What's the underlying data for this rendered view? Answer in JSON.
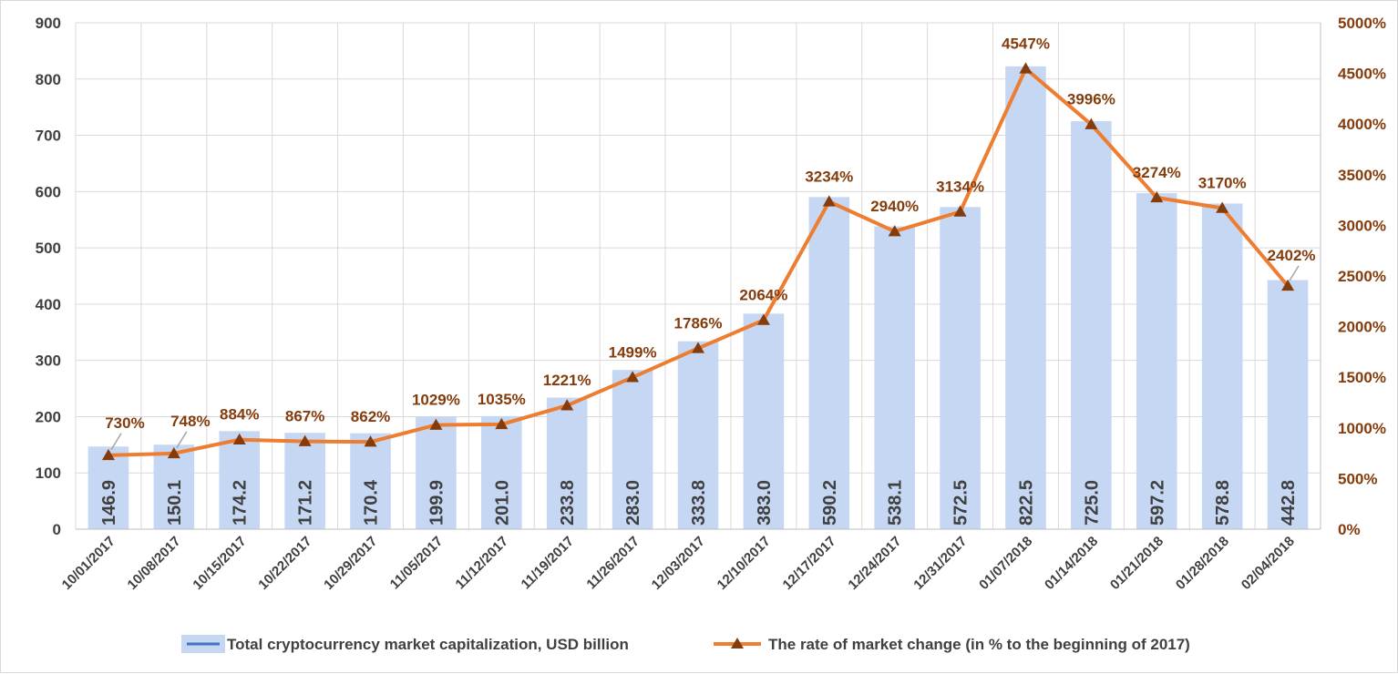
{
  "chart_data": {
    "type": "bar+line",
    "categories": [
      "10/01/2017",
      "10/08/2017",
      "10/15/2017",
      "10/22/2017",
      "10/29/2017",
      "11/05/2017",
      "11/12/2017",
      "11/19/2017",
      "11/26/2017",
      "12/03/2017",
      "12/10/2017",
      "12/17/2017",
      "12/24/2017",
      "12/31/2017",
      "01/07/2018",
      "01/14/2018",
      "01/21/2018",
      "01/28/2018",
      "02/04/2018"
    ],
    "series": [
      {
        "name": "Total cryptocurrency market capitalization, USD billion",
        "type": "bar",
        "axis": "left",
        "color": "#c5d7f3",
        "values": [
          146.9,
          150.1,
          174.2,
          171.2,
          170.4,
          199.9,
          201.0,
          233.8,
          283.0,
          333.8,
          383.0,
          590.2,
          538.1,
          572.5,
          822.5,
          725.0,
          597.2,
          578.8,
          442.8
        ],
        "labels": [
          "146.9",
          "150.1",
          "174.2",
          "171.2",
          "170.4",
          "199.9",
          "201.0",
          "233.8",
          "283.0",
          "333.8",
          "383.0",
          "590.2",
          "538.1",
          "572.5",
          "822.5",
          "725.0",
          "597.2",
          "578.8",
          "442.8"
        ]
      },
      {
        "name": "The rate of market change (in % to the beginning of 2017)",
        "type": "line",
        "axis": "right",
        "color": "#ed7d31",
        "marker_color": "#843c0c",
        "values": [
          730,
          748,
          884,
          867,
          862,
          1029,
          1035,
          1221,
          1499,
          1786,
          2064,
          3234,
          2940,
          3134,
          4547,
          3996,
          3274,
          3170,
          2402
        ],
        "labels": [
          "730%",
          "748%",
          "884%",
          "867%",
          "862%",
          "1029%",
          "1035%",
          "1221%",
          "1499%",
          "1786%",
          "2064%",
          "3234%",
          "2940%",
          "3134%",
          "4547%",
          "3996%",
          "3274%",
          "3170%",
          "2402%"
        ]
      }
    ],
    "left_axis": {
      "min": 0,
      "max": 900,
      "step": 100,
      "ticks": [
        "0",
        "100",
        "200",
        "300",
        "400",
        "500",
        "600",
        "700",
        "800",
        "900"
      ]
    },
    "right_axis": {
      "min": 0,
      "max": 5000,
      "step": 500,
      "ticks": [
        "0%",
        "500%",
        "1000%",
        "1500%",
        "2000%",
        "2500%",
        "3000%",
        "3500%",
        "4000%",
        "4500%",
        "5000%"
      ]
    },
    "grid": true,
    "legend_position": "bottom",
    "title": ""
  }
}
